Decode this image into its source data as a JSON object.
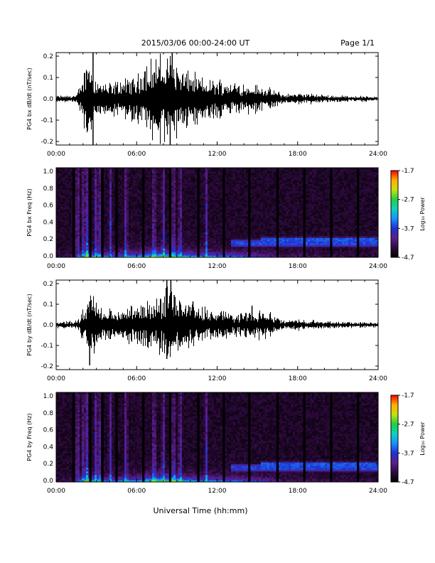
{
  "header": {
    "date_range": "2015/03/06  00:00-24:00 UT",
    "page": "Page 1/1"
  },
  "xaxis": {
    "label": "Universal Time (hh:mm)",
    "ticks": [
      "00:00",
      "06:00",
      "12:00",
      "18:00",
      "24:00"
    ],
    "range_hours": [
      0,
      24
    ]
  },
  "colors": {
    "waveform": "#000000",
    "colormap": [
      "#000000",
      "#2d0a3c",
      "#5a1f8c",
      "#2030d0",
      "#1a90ff",
      "#10d0c0",
      "#20d040",
      "#c8e010",
      "#ffb000",
      "#ff0000"
    ]
  },
  "colorbar": {
    "ticks": [
      "-1.7",
      "-2.7",
      "-3.7",
      "-4.7"
    ],
    "label": "Log₁₀ Power",
    "range": [
      -4.7,
      -1.7
    ]
  },
  "chart_data": [
    {
      "type": "line",
      "ylabel": "PG4 bx dB/dt (nT/sec)",
      "yticks": [
        "0.2",
        "0.1",
        "0.0",
        "-0.1",
        "-0.2"
      ],
      "ylim": [
        -0.21,
        0.21
      ],
      "envelope": {
        "t": [
          0,
          1.5,
          2.0,
          2.4,
          2.75,
          3.1,
          4,
          5,
          6,
          6.8,
          7.5,
          8,
          8.5,
          9.2,
          10,
          11,
          12,
          13,
          14,
          15,
          16,
          17,
          18,
          20,
          22,
          24
        ],
        "amp": [
          0.008,
          0.01,
          0.06,
          0.13,
          0.06,
          0.05,
          0.04,
          0.05,
          0.06,
          0.1,
          0.11,
          0.1,
          0.12,
          0.08,
          0.07,
          0.05,
          0.05,
          0.045,
          0.04,
          0.035,
          0.025,
          0.012,
          0.015,
          0.01,
          0.008,
          0.006
        ]
      },
      "spikes": [
        {
          "t": 2.4,
          "min": -0.11,
          "max": 0.09
        },
        {
          "t": 2.75,
          "min": -0.21,
          "max": 0.21
        },
        {
          "t": 7.45,
          "min": -0.09,
          "max": 0.11
        },
        {
          "t": 8.5,
          "min": -0.21,
          "max": 0.15
        },
        {
          "t": 8.8,
          "min": -0.12,
          "max": 0.09
        },
        {
          "t": 8.65,
          "min": -0.1,
          "max": 0.21
        }
      ]
    },
    {
      "type": "heatmap",
      "ylabel": "PG4 bx Freq (Hz)",
      "yticks": [
        "1.0",
        "0.8",
        "0.6",
        "0.4",
        "0.2",
        "0.0"
      ],
      "ylim": [
        0,
        1.0
      ],
      "gaps_hours": [
        1.3,
        2.55,
        3.45,
        4.5,
        6.5,
        8.5,
        10.6,
        12.5,
        14.4,
        16.5,
        18.5,
        20.5,
        22.5
      ],
      "bright_columns_hours": [
        1.6,
        2.05,
        2.3,
        2.95,
        3.2,
        4.05,
        5.2,
        7.3,
        8.0,
        8.75,
        9.25,
        11.2
      ],
      "bands": [
        {
          "t0": 13.0,
          "t1": 24.0,
          "f": 0.16,
          "w": 0.05,
          "power": -3.6
        },
        {
          "t0": 15.3,
          "t1": 24.0,
          "f": 0.2,
          "w": 0.03,
          "power": -3.5
        }
      ]
    },
    {
      "type": "line",
      "ylabel": "PG4 by dB/dt (nT/sec)",
      "yticks": [
        "0.2",
        "0.1",
        "0.0",
        "-0.1",
        "-0.2"
      ],
      "ylim": [
        -0.21,
        0.21
      ],
      "envelope": {
        "t": [
          0,
          1.5,
          2.0,
          2.4,
          2.75,
          3.1,
          4,
          5,
          6,
          6.8,
          7.5,
          8,
          8.5,
          9.2,
          10,
          11,
          12,
          13,
          14,
          15,
          16,
          17,
          18,
          20,
          22,
          24
        ],
        "amp": [
          0.008,
          0.01,
          0.04,
          0.07,
          0.09,
          0.05,
          0.04,
          0.05,
          0.05,
          0.06,
          0.07,
          0.09,
          0.1,
          0.07,
          0.06,
          0.045,
          0.04,
          0.035,
          0.03,
          0.04,
          0.03,
          0.012,
          0.015,
          0.01,
          0.008,
          0.006
        ]
      },
      "spikes": [
        {
          "t": 2.5,
          "min": -0.19,
          "max": 0.11
        },
        {
          "t": 7.8,
          "min": -0.11,
          "max": 0.12
        },
        {
          "t": 8.25,
          "min": -0.16,
          "max": 0.21
        },
        {
          "t": 8.55,
          "min": -0.1,
          "max": 0.21
        },
        {
          "t": 8.8,
          "min": -0.08,
          "max": 0.14
        },
        {
          "t": 10.2,
          "min": -0.06,
          "max": 0.11
        },
        {
          "t": 14.6,
          "min": -0.04,
          "max": 0.09
        }
      ]
    },
    {
      "type": "heatmap",
      "ylabel": "PG4 by Freq (Hz)",
      "yticks": [
        "1.0",
        "0.8",
        "0.6",
        "0.4",
        "0.2",
        "0.0"
      ],
      "ylim": [
        0,
        1.0
      ],
      "gaps_hours": [
        1.3,
        2.55,
        3.45,
        4.5,
        6.5,
        8.5,
        10.6,
        12.5,
        14.4,
        16.5,
        18.5,
        20.5,
        22.5
      ],
      "bright_columns_hours": [
        1.6,
        2.05,
        2.3,
        2.95,
        3.2,
        4.05,
        5.2,
        7.3,
        8.0,
        8.75,
        9.25,
        11.2
      ],
      "bands": [
        {
          "t0": 13.0,
          "t1": 24.0,
          "f": 0.16,
          "w": 0.05,
          "power": -3.6
        },
        {
          "t0": 15.3,
          "t1": 24.0,
          "f": 0.2,
          "w": 0.03,
          "power": -3.5
        }
      ]
    }
  ]
}
